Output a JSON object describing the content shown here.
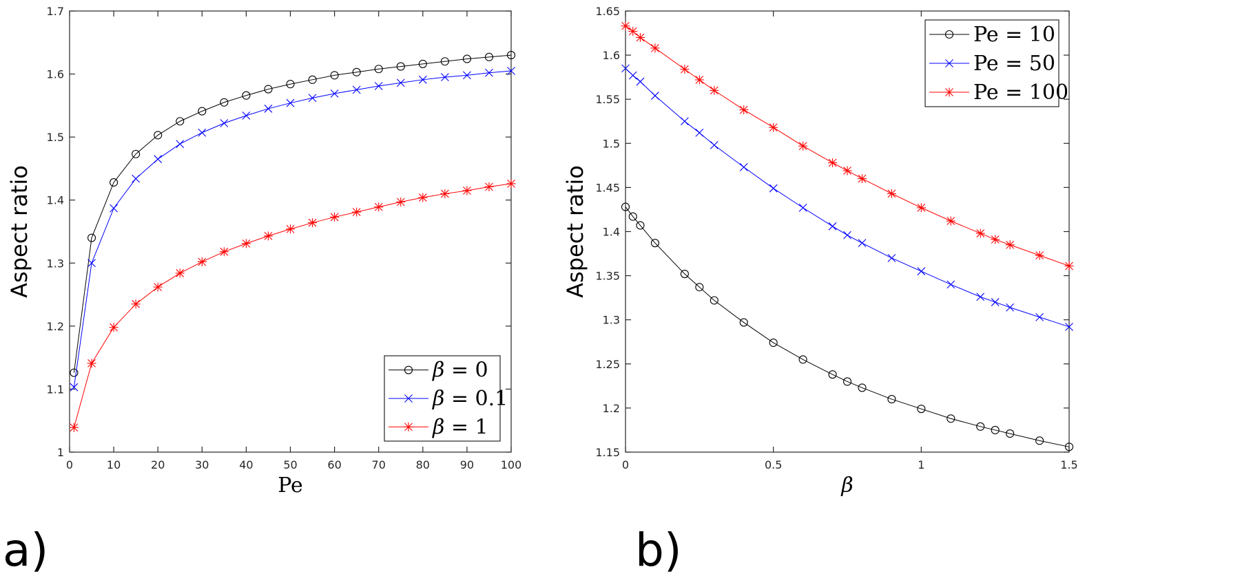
{
  "panels": [
    {
      "label": "a)",
      "chart_data": {
        "type": "line",
        "xlabel": "Pe",
        "ylabel": "Aspect ratio",
        "xlim": [
          0,
          100
        ],
        "ylim": [
          1.0,
          1.7
        ],
        "xticks": [
          0,
          10,
          20,
          30,
          40,
          50,
          60,
          70,
          80,
          90,
          100
        ],
        "yticks": [
          1.0,
          1.1,
          1.2,
          1.3,
          1.4,
          1.5,
          1.6,
          1.7
        ],
        "xtick_labels": [
          "0",
          "10",
          "20",
          "30",
          "40",
          "50",
          "60",
          "70",
          "80",
          "90",
          "100"
        ],
        "ytick_labels": [
          "1",
          "1.1",
          "1.2",
          "1.3",
          "1.4",
          "1.5",
          "1.6",
          "1.7"
        ],
        "legend_position": "bottom-right",
        "x": [
          1,
          5,
          10,
          15,
          20,
          25,
          30,
          35,
          40,
          45,
          50,
          55,
          60,
          65,
          70,
          75,
          80,
          85,
          90,
          95,
          100
        ],
        "series": [
          {
            "name": "β = 0",
            "legend_symbol": "β",
            "legend_value": "= 0",
            "color": "#000000",
            "marker": "circle",
            "values": [
              1.126,
              1.34,
              1.428,
              1.473,
              1.503,
              1.525,
              1.541,
              1.555,
              1.566,
              1.576,
              1.584,
              1.591,
              1.598,
              1.603,
              1.608,
              1.612,
              1.616,
              1.62,
              1.624,
              1.627,
              1.63
            ]
          },
          {
            "name": "β = 0.1",
            "legend_symbol": "β",
            "legend_value": "= 0.1",
            "color": "#0000ff",
            "marker": "x",
            "values": [
              1.103,
              1.3,
              1.387,
              1.434,
              1.465,
              1.489,
              1.507,
              1.522,
              1.534,
              1.545,
              1.554,
              1.562,
              1.569,
              1.575,
              1.581,
              1.586,
              1.591,
              1.595,
              1.598,
              1.602,
              1.605
            ]
          },
          {
            "name": "β = 1",
            "legend_symbol": "β",
            "legend_value": "= 1",
            "color": "#ff0000",
            "marker": "asterisk",
            "values": [
              1.039,
              1.141,
              1.198,
              1.235,
              1.262,
              1.284,
              1.302,
              1.318,
              1.331,
              1.343,
              1.354,
              1.364,
              1.373,
              1.381,
              1.389,
              1.397,
              1.404,
              1.41,
              1.415,
              1.421,
              1.426
            ]
          }
        ]
      }
    },
    {
      "label": "b)",
      "chart_data": {
        "type": "line",
        "xlabel": "β",
        "ylabel": "Aspect ratio",
        "xlim": [
          0,
          1.5
        ],
        "ylim": [
          1.15,
          1.65
        ],
        "xticks": [
          0,
          0.5,
          1.0,
          1.5
        ],
        "yticks": [
          1.15,
          1.2,
          1.25,
          1.3,
          1.35,
          1.4,
          1.45,
          1.5,
          1.55,
          1.6,
          1.65
        ],
        "xtick_labels": [
          "0",
          "0.5",
          "1",
          "1.5"
        ],
        "ytick_labels": [
          "1.15",
          "1.2",
          "1.25",
          "1.3",
          "1.35",
          "1.4",
          "1.45",
          "1.5",
          "1.55",
          "1.6",
          "1.65"
        ],
        "legend_position": "top-right",
        "x": [
          0,
          0.025,
          0.05,
          0.1,
          0.2,
          0.25,
          0.3,
          0.4,
          0.5,
          0.6,
          0.7,
          0.75,
          0.8,
          0.9,
          1.0,
          1.1,
          1.2,
          1.25,
          1.3,
          1.4,
          1.5
        ],
        "series": [
          {
            "name": "Pe = 10",
            "legend_symbol": "Pe",
            "legend_value": "= 10",
            "color": "#000000",
            "marker": "circle",
            "values": [
              1.428,
              1.417,
              1.407,
              1.387,
              1.352,
              1.337,
              1.322,
              1.297,
              1.274,
              1.255,
              1.238,
              1.23,
              1.223,
              1.21,
              1.199,
              1.188,
              1.179,
              1.175,
              1.171,
              1.163,
              1.156
            ]
          },
          {
            "name": "Pe = 50",
            "legend_symbol": "Pe",
            "legend_value": "= 50",
            "color": "#0000ff",
            "marker": "x",
            "values": [
              1.585,
              1.577,
              1.57,
              1.554,
              1.525,
              1.512,
              1.498,
              1.473,
              1.449,
              1.427,
              1.406,
              1.396,
              1.387,
              1.37,
              1.355,
              1.34,
              1.326,
              1.32,
              1.314,
              1.303,
              1.292
            ]
          },
          {
            "name": "Pe = 100",
            "legend_symbol": "Pe",
            "legend_value": "= 100",
            "color": "#ff0000",
            "marker": "asterisk",
            "values": [
              1.633,
              1.627,
              1.62,
              1.608,
              1.584,
              1.572,
              1.56,
              1.538,
              1.518,
              1.497,
              1.478,
              1.469,
              1.46,
              1.443,
              1.427,
              1.412,
              1.398,
              1.391,
              1.385,
              1.373,
              1.361
            ]
          }
        ]
      }
    }
  ]
}
